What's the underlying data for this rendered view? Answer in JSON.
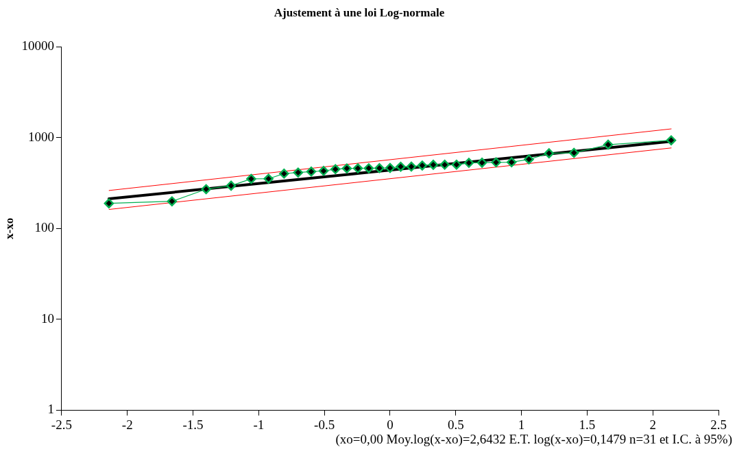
{
  "chart_data": {
    "type": "line",
    "title": "Ajustement à une loi Log-normale",
    "ylabel": "x-xo",
    "log": "y",
    "grid": false,
    "legend": false,
    "xlim": [
      -2.5,
      2.5
    ],
    "xticks": [
      -2.5,
      -2,
      -1.5,
      -1,
      -0.5,
      0,
      0.5,
      1,
      1.5,
      2,
      2.5
    ],
    "ylim": [
      1,
      10000
    ],
    "yticks": [
      1,
      10,
      100,
      1000,
      10000
    ],
    "series": [
      {
        "color": "#00b050",
        "marker": "diamond",
        "x": [
          -2.14,
          -1.66,
          -1.4,
          -1.21,
          -1.057,
          -0.925,
          -0.807,
          -0.7,
          -0.6,
          -0.506,
          -0.416,
          -0.329,
          -0.245,
          -0.162,
          -0.081,
          0,
          0.081,
          0.162,
          0.245,
          0.329,
          0.416,
          0.506,
          0.6,
          0.7,
          0.807,
          0.925,
          1.057,
          1.21,
          1.4,
          1.66,
          2.14
        ],
        "values": [
          189,
          199,
          271,
          296,
          352,
          353,
          402,
          413,
          423,
          431,
          450,
          459,
          460,
          461,
          462,
          464,
          479,
          480,
          494,
          503,
          504,
          505,
          528,
          530,
          535,
          537,
          577,
          673,
          681,
          837,
          935
        ]
      },
      {
        "color": "#000000",
        "marker": "none",
        "x": [
          -2.14,
          2.14
        ],
        "values": [
          212,
          911
        ]
      },
      {
        "color": "#ff0000",
        "marker": "none",
        "x": [
          -2.14,
          2.14
        ],
        "values": [
          262,
          1250
        ]
      },
      {
        "color": "#ff0000",
        "marker": "none",
        "x": [
          -2.14,
          2.14
        ],
        "values": [
          162,
          771
        ]
      }
    ],
    "annotations": [
      "(xo=0,00 Moy.log(x-xo)=2,6432 E.T. log(x-xo)=0,1479 n=31 et I.C. à 95%)"
    ]
  }
}
